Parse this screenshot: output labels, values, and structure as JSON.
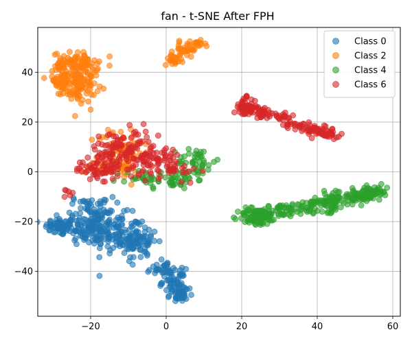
{
  "chart_data": {
    "type": "scatter",
    "title": "fan - t-SNE After FPH",
    "xlabel": "",
    "ylabel": "",
    "xlim": [
      -34,
      62
    ],
    "ylim": [
      -58,
      58
    ],
    "x_ticks": [
      -20,
      0,
      20,
      40,
      60
    ],
    "y_ticks": [
      -40,
      -20,
      0,
      20,
      40
    ],
    "grid": true,
    "legend_position": "top-right",
    "series": [
      {
        "name": "Class 0",
        "color": "#1f77b4",
        "clusters": [
          {
            "cx": -28,
            "cy": -22,
            "sx": 2.0,
            "sy": 1.8,
            "n": 55
          },
          {
            "cx": -20,
            "cy": -22,
            "sx": 3.5,
            "sy": 4.0,
            "n": 120
          },
          {
            "cx": -13,
            "cy": -25,
            "sx": 3.0,
            "sy": 4.0,
            "n": 90
          },
          {
            "cx": -7,
            "cy": -28,
            "sx": 2.5,
            "sy": 4.0,
            "n": 70
          },
          {
            "cx": -20,
            "cy": -14,
            "sx": 3.0,
            "sy": 2.0,
            "n": 40
          },
          {
            "cx": -1,
            "cy": -39,
            "sx": 2.0,
            "sy": 1.5,
            "n": 30
          },
          {
            "cx": 2,
            "cy": -44,
            "sx": 1.5,
            "sy": 2.5,
            "n": 45
          },
          {
            "cx": 4,
            "cy": -49,
            "sx": 1.5,
            "sy": 1.8,
            "n": 40
          }
        ]
      },
      {
        "name": "Class 2",
        "color": "#ff7f0e",
        "clusters": [
          {
            "cx": -24,
            "cy": 43,
            "sx": 3.0,
            "sy": 2.5,
            "n": 110
          },
          {
            "cx": -23,
            "cy": 34,
            "sx": 2.2,
            "sy": 3.0,
            "n": 90
          },
          {
            "cx": -28,
            "cy": 36,
            "sx": 1.8,
            "sy": 1.5,
            "n": 35
          },
          {
            "cx": 2,
            "cy": 45,
            "sx": 1.2,
            "sy": 1.0,
            "n": 25
          },
          {
            "cx": 5,
            "cy": 49,
            "sx": 1.5,
            "sy": 1.5,
            "n": 35
          },
          {
            "cx": 8,
            "cy": 51,
            "sx": 1.2,
            "sy": 0.8,
            "n": 15
          },
          {
            "cx": -12,
            "cy": 8,
            "sx": 3.0,
            "sy": 5.0,
            "n": 70
          },
          {
            "cx": -15,
            "cy": 2,
            "sx": 3.0,
            "sy": 2.0,
            "n": 25
          }
        ]
      },
      {
        "name": "Class 4",
        "color": "#2ca02c",
        "clusters": [
          {
            "cx": 8,
            "cy": 4,
            "sx": 2.5,
            "sy": 3.0,
            "n": 45
          },
          {
            "cx": 2,
            "cy": -3,
            "sx": 3.0,
            "sy": 2.0,
            "n": 40
          },
          {
            "cx": -7,
            "cy": -3,
            "sx": 2.5,
            "sy": 2.0,
            "n": 20
          },
          {
            "cx": 24,
            "cy": -18,
            "sx": 2.5,
            "sy": 1.8,
            "n": 80
          },
          {
            "cx": 30,
            "cy": -16,
            "sx": 2.5,
            "sy": 1.5,
            "n": 40
          },
          {
            "cx": 37,
            "cy": -14,
            "sx": 2.5,
            "sy": 1.5,
            "n": 35
          },
          {
            "cx": 43,
            "cy": -12,
            "sx": 2.0,
            "sy": 2.0,
            "n": 60
          },
          {
            "cx": 50,
            "cy": -10,
            "sx": 2.5,
            "sy": 1.5,
            "n": 60
          },
          {
            "cx": 55,
            "cy": -8,
            "sx": 1.8,
            "sy": 1.2,
            "n": 45
          }
        ]
      },
      {
        "name": "Class 6",
        "color": "#d62728",
        "clusters": [
          {
            "cx": 21,
            "cy": 26,
            "sx": 1.5,
            "sy": 1.8,
            "n": 60
          },
          {
            "cx": 25,
            "cy": 24,
            "sx": 2.0,
            "sy": 1.0,
            "n": 30
          },
          {
            "cx": 30,
            "cy": 22,
            "sx": 2.0,
            "sy": 1.0,
            "n": 20
          },
          {
            "cx": 35,
            "cy": 19,
            "sx": 2.0,
            "sy": 0.8,
            "n": 20
          },
          {
            "cx": 39,
            "cy": 17,
            "sx": 2.0,
            "sy": 1.0,
            "n": 35
          },
          {
            "cx": 43,
            "cy": 15,
            "sx": 1.5,
            "sy": 0.8,
            "n": 25
          },
          {
            "cx": -12,
            "cy": 8,
            "sx": 4.0,
            "sy": 4.5,
            "n": 110
          },
          {
            "cx": -18,
            "cy": 1,
            "sx": 3.0,
            "sy": 2.0,
            "n": 45
          },
          {
            "cx": -4,
            "cy": 5,
            "sx": 3.0,
            "sy": 4.0,
            "n": 60
          },
          {
            "cx": 2,
            "cy": 3,
            "sx": 3.0,
            "sy": 3.0,
            "n": 30
          },
          {
            "cx": -26,
            "cy": -9,
            "sx": 0.8,
            "sy": 1.0,
            "n": 6
          }
        ]
      }
    ]
  }
}
